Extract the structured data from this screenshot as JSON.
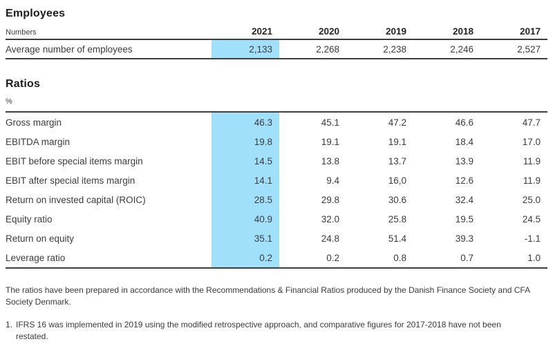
{
  "employees_section": {
    "title": "Employees",
    "unit_label": "Numbers",
    "years": [
      "2021",
      "2020",
      "2019",
      "2018",
      "2017"
    ],
    "rows": [
      {
        "label": "Average number of employees",
        "values": [
          "2,133",
          "2,268",
          "2,238",
          "2,246",
          "2,527"
        ]
      }
    ]
  },
  "ratios_section": {
    "title": "Ratios",
    "unit_label": "%",
    "rows": [
      {
        "label": "Gross margin",
        "values": [
          "46.3",
          "45.1",
          "47.2",
          "46.6",
          "47.7"
        ]
      },
      {
        "label": "EBITDA margin",
        "values": [
          "19.8",
          "19.1",
          "19.1",
          "18.4",
          "17.0"
        ]
      },
      {
        "label": "EBIT before special items margin",
        "values": [
          "14.5",
          "13.8",
          "13.7",
          "13.9",
          "11.9"
        ]
      },
      {
        "label": "EBIT after special items margin",
        "values": [
          "14.1",
          "9.4",
          "16,0",
          "12.6",
          "11.9"
        ]
      },
      {
        "label": "Return on invested capital (ROIC)",
        "values": [
          "28.5",
          "29.8",
          "30.6",
          "32.4",
          "25.0"
        ]
      },
      {
        "label": "Equity ratio",
        "values": [
          "40.9",
          "32.0",
          "25.8",
          "19.5",
          "24.5"
        ]
      },
      {
        "label": "Return on equity",
        "values": [
          "35.1",
          "24.8",
          "51.4",
          "39.3",
          "-1.1"
        ]
      },
      {
        "label": "Leverage ratio",
        "values": [
          "0.2",
          "0.2",
          "0.8",
          "0.7",
          "1.0"
        ]
      }
    ]
  },
  "notes": {
    "ratios_note": "The ratios have been prepared in accordance with the Recommendations & Financial Ratios produced by the Danish Finance Society and CFA Society Denmark.",
    "footnote_marker": "1.",
    "footnote_text": "IFRS 16 was implemented in 2019 using the modified retrospective approach, and comparative figures for 2017-2018 have not been restated."
  },
  "colors": {
    "highlight_blue": "#a0e0fa",
    "rule_dark": "#3e3e3e",
    "text": "#3c3c3c"
  }
}
